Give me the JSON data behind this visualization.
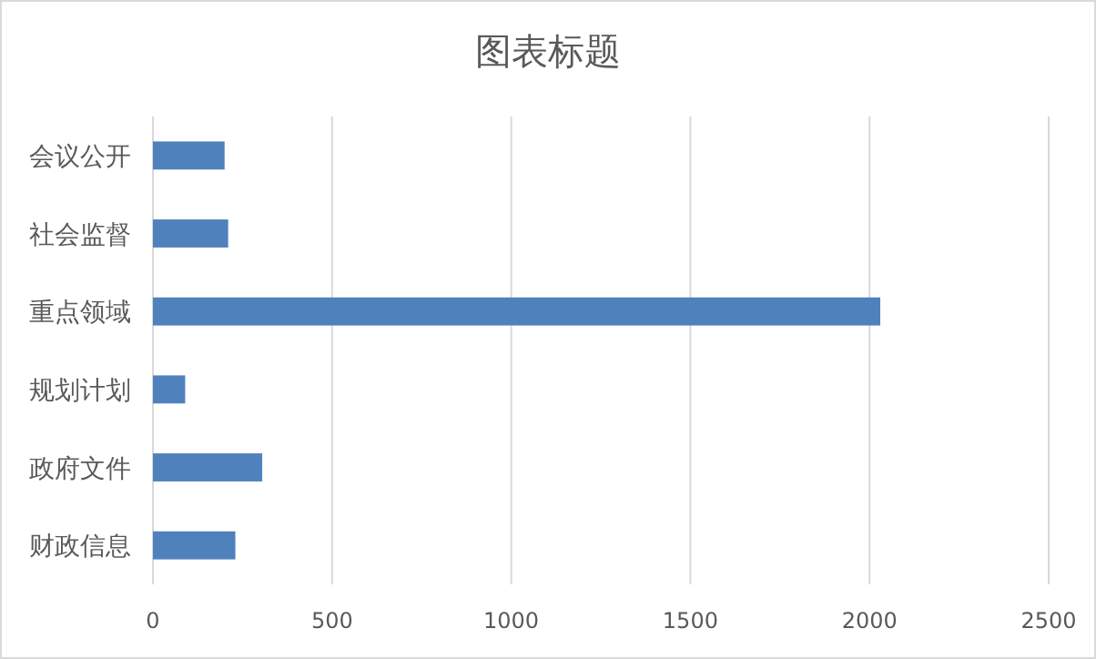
{
  "chart_data": {
    "type": "bar",
    "orientation": "horizontal",
    "title": "图表标题",
    "categories": [
      "会议公开",
      "社会监督",
      "重点领域",
      "规划计划",
      "政府文件",
      "财政信息"
    ],
    "values": [
      200,
      210,
      2030,
      90,
      305,
      230
    ],
    "color": "#4f81bd",
    "xlim": [
      0,
      2500
    ],
    "xticks": [
      0,
      500,
      1000,
      1500,
      2000,
      2500
    ],
    "grid": "x",
    "legend": false
  }
}
